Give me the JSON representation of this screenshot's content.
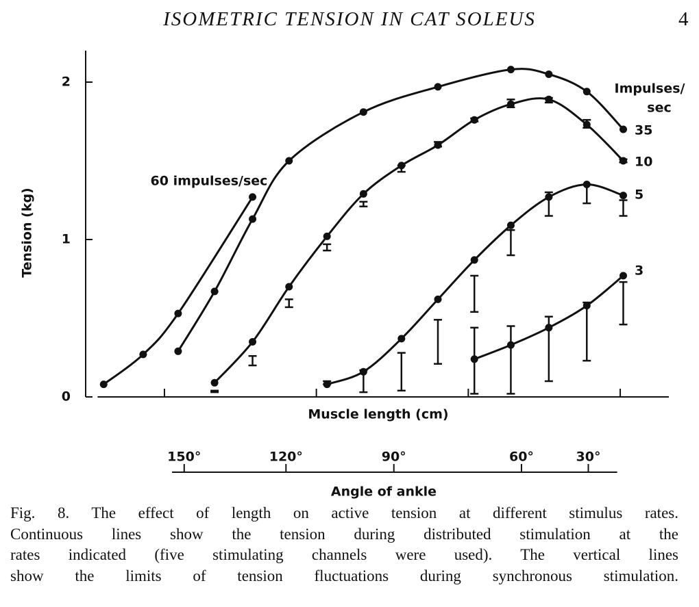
{
  "header": {
    "title": "ISOMETRIC TENSION IN CAT SOLEUS",
    "page": "4"
  },
  "chart_data": {
    "type": "line",
    "y_label": "Tension (kg)",
    "x_label": "Muscle length (cm)",
    "x2_label": "Angle of ankle",
    "legend_title": [
      "Impulses/",
      "sec"
    ],
    "ylim": [
      0,
      2.2
    ],
    "yticks": [
      0,
      1,
      2
    ],
    "xlim": [
      0.56,
      4.32
    ],
    "xticks": [
      1,
      2,
      3,
      4
    ],
    "x2lim": [
      1.05,
      3.98
    ],
    "x2ticks": [
      {
        "value": 1.13,
        "label": "150°"
      },
      {
        "value": 1.8,
        "label": "120°"
      },
      {
        "value": 2.51,
        "label": "90°"
      },
      {
        "value": 3.35,
        "label": "60°"
      },
      {
        "value": 3.79,
        "label": "30°"
      }
    ],
    "color": "#111111",
    "series": [
      {
        "name": "60 impulses/sec",
        "x": [
          0.6,
          0.86,
          1.09,
          1.58
        ],
        "values": [
          0.08,
          0.27,
          0.53,
          1.27
        ]
      },
      {
        "name": "35",
        "x": [
          1.09,
          1.33,
          1.58,
          1.82,
          2.31,
          2.8,
          3.28,
          3.53,
          3.78,
          4.02
        ],
        "values": [
          0.29,
          0.67,
          1.13,
          1.5,
          1.81,
          1.97,
          2.08,
          2.05,
          1.94,
          1.7
        ]
      },
      {
        "name": "10",
        "x": [
          1.33,
          1.58,
          1.82,
          2.07,
          2.31,
          2.56,
          2.8,
          3.04,
          3.28,
          3.53,
          3.78,
          4.02
        ],
        "values": [
          0.09,
          0.35,
          0.7,
          1.02,
          1.29,
          1.47,
          1.6,
          1.76,
          1.86,
          1.89,
          1.73,
          1.5
        ],
        "range_low": [
          0.03,
          0.2,
          0.57,
          0.93,
          1.21,
          1.43,
          1.59,
          1.75,
          1.84,
          1.87,
          1.71,
          1.49
        ],
        "range_high": [
          0.04,
          0.26,
          0.62,
          0.97,
          1.24,
          1.47,
          1.62,
          1.77,
          1.89,
          1.9,
          1.76,
          1.51
        ]
      },
      {
        "name": "5",
        "x": [
          2.07,
          2.31,
          2.56,
          2.8,
          3.04,
          3.28,
          3.53,
          3.78,
          4.02
        ],
        "values": [
          0.08,
          0.16,
          0.37,
          0.62,
          0.87,
          1.09,
          1.27,
          1.35,
          1.28
        ],
        "range_low": [
          0.08,
          0.03,
          0.04,
          0.21,
          0.54,
          0.9,
          1.15,
          1.23,
          1.15
        ],
        "range_high": [
          0.1,
          0.17,
          0.28,
          0.49,
          0.77,
          1.06,
          1.3,
          1.35,
          1.25
        ]
      },
      {
        "name": "3",
        "x": [
          3.04,
          3.28,
          3.53,
          3.78,
          4.02
        ],
        "values": [
          0.24,
          0.33,
          0.44,
          0.58,
          0.77
        ],
        "range_low": [
          0.02,
          0.02,
          0.1,
          0.23,
          0.46
        ],
        "range_high": [
          0.44,
          0.45,
          0.51,
          0.6,
          0.73
        ]
      }
    ]
  },
  "caption": {
    "lines": [
      "Fig. 8. The effect of length on active tension at different stimulus rates.",
      "Continuous lines show the tension during distributed stimulation at the",
      "rates indicated (five stimulating channels were used). The vertical lines",
      "show the limits of tension fluctuations during synchronous stimulation."
    ]
  }
}
